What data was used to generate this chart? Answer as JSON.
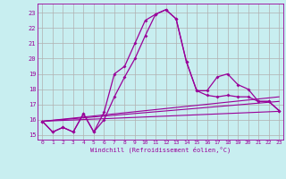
{
  "xlabel": "Windchill (Refroidissement éolien,°C)",
  "background_color": "#c8eef0",
  "grid_color": "#b0b0b0",
  "line_color": "#990099",
  "xlim": [
    -0.5,
    23.4
  ],
  "ylim": [
    14.7,
    23.6
  ],
  "xticks": [
    0,
    1,
    2,
    3,
    4,
    5,
    6,
    7,
    8,
    9,
    10,
    11,
    12,
    13,
    14,
    15,
    16,
    17,
    18,
    19,
    20,
    21,
    22,
    23
  ],
  "yticks": [
    15,
    16,
    17,
    18,
    19,
    20,
    21,
    22,
    23
  ],
  "line1_x": [
    0,
    1,
    2,
    3,
    4,
    5,
    6,
    7,
    8,
    9,
    10,
    11,
    12,
    13,
    14,
    15,
    16,
    17,
    18,
    19,
    20,
    21,
    22,
    23
  ],
  "line1_y": [
    15.9,
    15.2,
    15.5,
    15.2,
    16.4,
    15.2,
    16.5,
    19.0,
    19.5,
    21.0,
    22.5,
    22.9,
    23.2,
    22.6,
    19.8,
    17.9,
    17.9,
    18.8,
    19.0,
    18.3,
    18.0,
    17.2,
    17.2,
    16.6
  ],
  "line2_x": [
    0,
    1,
    2,
    3,
    4,
    5,
    6,
    7,
    8,
    9,
    10,
    11,
    12,
    13,
    14,
    15,
    16,
    17,
    18,
    19,
    20,
    21,
    22,
    23
  ],
  "line2_y": [
    15.9,
    15.2,
    15.5,
    15.2,
    16.4,
    15.2,
    16.0,
    17.5,
    18.8,
    20.0,
    21.5,
    22.9,
    23.2,
    22.6,
    19.8,
    17.9,
    17.6,
    17.5,
    17.6,
    17.5,
    17.5,
    17.2,
    17.2,
    16.6
  ],
  "line3_x": [
    0,
    23
  ],
  "line3_y": [
    15.9,
    16.55
  ],
  "line4_x": [
    0,
    23
  ],
  "line4_y": [
    15.9,
    17.2
  ],
  "line5_x": [
    0,
    23
  ],
  "line5_y": [
    15.9,
    17.5
  ]
}
